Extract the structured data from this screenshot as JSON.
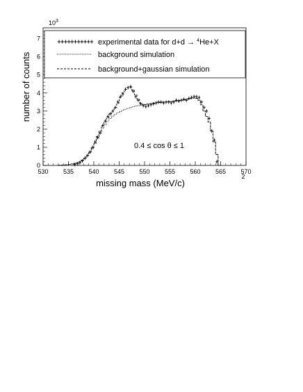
{
  "chart_data": {
    "type": "histogram",
    "xlabel": "missing mass (MeV/c)",
    "xlabel_unit_exponent": "2",
    "ylabel": "number of counts",
    "y_multiplier": "10",
    "y_multiplier_exp": "3",
    "xlim": [
      530,
      570
    ],
    "ylim": [
      0,
      7.6
    ],
    "x_ticks": [
      "530",
      "535",
      "540",
      "545",
      "550",
      "555",
      "560",
      "565",
      "570"
    ],
    "y_ticks": [
      "0",
      "1",
      "2",
      "3",
      "4",
      "5",
      "6",
      "7"
    ],
    "bin_width": 0.5,
    "annotation": "0.4 ≤ cos θ ≤ 1",
    "legend": {
      "position": "top",
      "entries": [
        {
          "prefix": "experimental data for d+d → ",
          "sup": "4",
          "suffix": "He+X",
          "style": "crosses"
        },
        {
          "label": "background simulation",
          "style": "dotted"
        },
        {
          "label": "background+gaussian simulation",
          "style": "dashed"
        }
      ]
    },
    "series": [
      {
        "name": "experimental data",
        "x": [
          536.25,
          536.75,
          537.25,
          537.75,
          538.25,
          538.75,
          539.25,
          539.75,
          540.25,
          540.75,
          541.25,
          541.75,
          542.25,
          542.75,
          543.25,
          543.75,
          544.25,
          544.75,
          545.25,
          545.75,
          546.25,
          546.75,
          547.25,
          547.75,
          548.25,
          548.75,
          549.25,
          549.75,
          550.25,
          550.75,
          551.25,
          551.75,
          552.25,
          552.75,
          553.25,
          553.75,
          554.25,
          554.75,
          555.25,
          555.75,
          556.25,
          556.75,
          557.25,
          557.75,
          558.25,
          558.75,
          559.25,
          559.75,
          560.25,
          560.75,
          561.25,
          561.75,
          562.25,
          562.75,
          563.25,
          563.75,
          564.25
        ],
        "y": [
          0.05,
          0.1,
          0.15,
          0.25,
          0.4,
          0.55,
          0.75,
          1.0,
          1.3,
          1.55,
          1.8,
          2.2,
          2.45,
          2.7,
          2.85,
          3.0,
          3.2,
          3.5,
          3.8,
          3.95,
          4.2,
          4.3,
          4.35,
          4.1,
          3.8,
          3.6,
          3.4,
          3.3,
          3.25,
          3.3,
          3.35,
          3.4,
          3.45,
          3.5,
          3.5,
          3.45,
          3.5,
          3.5,
          3.45,
          3.5,
          3.6,
          3.55,
          3.6,
          3.65,
          3.6,
          3.7,
          3.75,
          3.8,
          3.8,
          3.75,
          3.5,
          3.2,
          3.0,
          2.6,
          1.9,
          1.4,
          0.2
        ]
      },
      {
        "name": "background simulation",
        "x": [
          533.25,
          533.75,
          534.25,
          534.75,
          535.25,
          535.75,
          536.25,
          536.75,
          537.25,
          537.75,
          538.25,
          538.75,
          539.25,
          539.75,
          540.25,
          540.75,
          541.25,
          541.75,
          542.25,
          542.75,
          543.25,
          543.75,
          544.25,
          544.75,
          545.25,
          545.75,
          546.25,
          546.75,
          547.25,
          547.75,
          548.25,
          548.75,
          549.25,
          549.75,
          550.25,
          550.75,
          551.25,
          551.75,
          552.25,
          552.75,
          553.25,
          553.75,
          554.25,
          554.75,
          555.25,
          555.75,
          556.25,
          556.75,
          557.25,
          557.75,
          558.25,
          558.75,
          559.25,
          559.75,
          560.25,
          560.75,
          561.25,
          561.75,
          562.25,
          562.75,
          563.25,
          563.75,
          564.25,
          564.75
        ],
        "y": [
          0.01,
          0.02,
          0.03,
          0.04,
          0.06,
          0.08,
          0.11,
          0.15,
          0.2,
          0.27,
          0.38,
          0.52,
          0.7,
          0.92,
          1.2,
          1.5,
          1.78,
          2.05,
          2.25,
          2.45,
          2.6,
          2.72,
          2.82,
          2.9,
          2.98,
          3.05,
          3.1,
          3.15,
          3.2,
          3.24,
          3.28,
          3.3,
          3.32,
          3.35,
          3.37,
          3.4,
          3.42,
          3.44,
          3.46,
          3.47,
          3.48,
          3.5,
          3.5,
          3.52,
          3.53,
          3.55,
          3.56,
          3.58,
          3.6,
          3.62,
          3.65,
          3.68,
          3.7,
          3.72,
          3.7,
          3.6,
          3.35,
          3.0,
          2.7,
          2.4,
          1.9,
          1.3,
          0.6,
          0.0
        ]
      },
      {
        "name": "background+gaussian simulation",
        "x": [
          533.25,
          533.75,
          534.25,
          534.75,
          535.25,
          535.75,
          536.25,
          536.75,
          537.25,
          537.75,
          538.25,
          538.75,
          539.25,
          539.75,
          540.25,
          540.75,
          541.25,
          541.75,
          542.25,
          542.75,
          543.25,
          543.75,
          544.25,
          544.75,
          545.25,
          545.75,
          546.25,
          546.75,
          547.25,
          547.75,
          548.25,
          548.75,
          549.25,
          549.75,
          550.25,
          550.75,
          551.25,
          551.75,
          552.25,
          552.75,
          553.25,
          553.75,
          554.25,
          554.75,
          555.25,
          555.75,
          556.25,
          556.75,
          557.25,
          557.75,
          558.25,
          558.75,
          559.25,
          559.75,
          560.25,
          560.75,
          561.25,
          561.75,
          562.25,
          562.75,
          563.25,
          563.75,
          564.25,
          564.75
        ],
        "y": [
          0.01,
          0.02,
          0.03,
          0.04,
          0.06,
          0.08,
          0.11,
          0.15,
          0.2,
          0.28,
          0.4,
          0.55,
          0.75,
          0.98,
          1.28,
          1.6,
          1.9,
          2.2,
          2.45,
          2.65,
          2.85,
          3.0,
          3.2,
          3.45,
          3.75,
          4.0,
          4.2,
          4.3,
          4.3,
          4.15,
          3.9,
          3.65,
          3.45,
          3.35,
          3.35,
          3.38,
          3.42,
          3.44,
          3.46,
          3.47,
          3.48,
          3.5,
          3.5,
          3.52,
          3.53,
          3.55,
          3.56,
          3.58,
          3.6,
          3.62,
          3.65,
          3.68,
          3.7,
          3.72,
          3.7,
          3.6,
          3.35,
          3.0,
          2.7,
          2.4,
          1.9,
          1.3,
          0.6,
          0.0
        ]
      }
    ]
  }
}
